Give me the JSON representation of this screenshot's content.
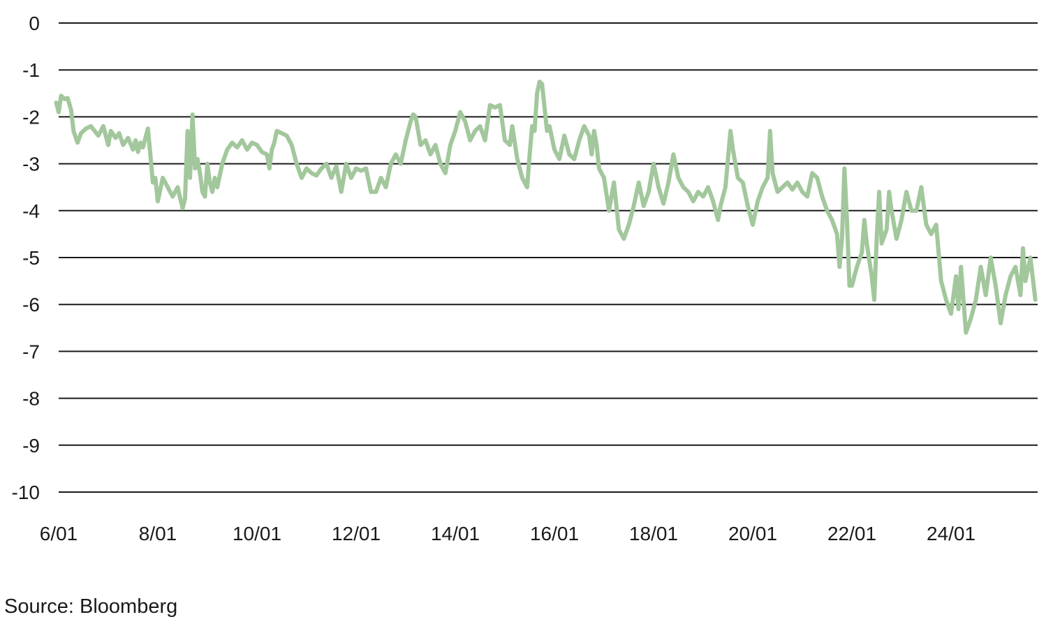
{
  "source": "Source: Bloomberg",
  "colors": {
    "line": "#a2c79c",
    "grid": "#1a1a1a",
    "text": "#1a1a1a"
  },
  "chart_data": {
    "type": "line",
    "ylim": [
      -10,
      0
    ],
    "yticks": [
      0,
      -1,
      -2,
      -3,
      -4,
      -5,
      -6,
      -7,
      -8,
      -9,
      -10
    ],
    "ytick_labels": [
      "0",
      "-1",
      "-2",
      "-3",
      "-4",
      "-5",
      "-6",
      "-7",
      "-8",
      "-9",
      "-10"
    ],
    "xlim_days": [
      0,
      19.7
    ],
    "xticks": [
      {
        "label": "6/01",
        "day": 0
      },
      {
        "label": "8/01",
        "day": 2
      },
      {
        "label": "10/01",
        "day": 4
      },
      {
        "label": "12/01",
        "day": 6
      },
      {
        "label": "14/01",
        "day": 8
      },
      {
        "label": "16/01",
        "day": 10
      },
      {
        "label": "18/01",
        "day": 12
      },
      {
        "label": "20/01",
        "day": 14
      },
      {
        "label": "22/01",
        "day": 16
      },
      {
        "label": "24/01",
        "day": 18
      }
    ],
    "grid": true,
    "series": [
      {
        "points": [
          [
            -0.05,
            -1.7
          ],
          [
            0.0,
            -1.9
          ],
          [
            0.05,
            -1.55
          ],
          [
            0.12,
            -1.62
          ],
          [
            0.18,
            -1.6
          ],
          [
            0.25,
            -1.85
          ],
          [
            0.3,
            -2.3
          ],
          [
            0.38,
            -2.55
          ],
          [
            0.45,
            -2.35
          ],
          [
            0.55,
            -2.25
          ],
          [
            0.65,
            -2.2
          ],
          [
            0.8,
            -2.4
          ],
          [
            0.9,
            -2.2
          ],
          [
            1.0,
            -2.6
          ],
          [
            1.05,
            -2.3
          ],
          [
            1.15,
            -2.45
          ],
          [
            1.22,
            -2.35
          ],
          [
            1.3,
            -2.6
          ],
          [
            1.4,
            -2.45
          ],
          [
            1.5,
            -2.7
          ],
          [
            1.55,
            -2.5
          ],
          [
            1.6,
            -2.75
          ],
          [
            1.65,
            -2.55
          ],
          [
            1.7,
            -2.65
          ],
          [
            1.8,
            -2.25
          ],
          [
            1.85,
            -2.8
          ],
          [
            1.9,
            -3.4
          ],
          [
            1.95,
            -3.3
          ],
          [
            2.0,
            -3.8
          ],
          [
            2.1,
            -3.3
          ],
          [
            2.2,
            -3.5
          ],
          [
            2.3,
            -3.7
          ],
          [
            2.4,
            -3.5
          ],
          [
            2.5,
            -3.95
          ],
          [
            2.55,
            -3.75
          ],
          [
            2.6,
            -2.3
          ],
          [
            2.65,
            -3.3
          ],
          [
            2.7,
            -1.95
          ],
          [
            2.75,
            -3.1
          ],
          [
            2.8,
            -2.9
          ],
          [
            2.85,
            -3.2
          ],
          [
            2.9,
            -3.6
          ],
          [
            2.95,
            -3.7
          ],
          [
            3.0,
            -3.0
          ],
          [
            3.05,
            -3.4
          ],
          [
            3.1,
            -3.6
          ],
          [
            3.15,
            -3.3
          ],
          [
            3.2,
            -3.5
          ],
          [
            3.3,
            -3.0
          ],
          [
            3.4,
            -2.7
          ],
          [
            3.5,
            -2.55
          ],
          [
            3.6,
            -2.65
          ],
          [
            3.7,
            -2.5
          ],
          [
            3.8,
            -2.7
          ],
          [
            3.9,
            -2.55
          ],
          [
            4.0,
            -2.6
          ],
          [
            4.1,
            -2.75
          ],
          [
            4.2,
            -2.8
          ],
          [
            4.25,
            -3.1
          ],
          [
            4.3,
            -2.7
          ],
          [
            4.35,
            -2.55
          ],
          [
            4.4,
            -2.3
          ],
          [
            4.5,
            -2.35
          ],
          [
            4.6,
            -2.4
          ],
          [
            4.7,
            -2.6
          ],
          [
            4.8,
            -3.0
          ],
          [
            4.9,
            -3.3
          ],
          [
            5.0,
            -3.1
          ],
          [
            5.1,
            -3.2
          ],
          [
            5.2,
            -3.25
          ],
          [
            5.3,
            -3.1
          ],
          [
            5.4,
            -3.0
          ],
          [
            5.5,
            -3.3
          ],
          [
            5.6,
            -3.05
          ],
          [
            5.7,
            -3.6
          ],
          [
            5.8,
            -3.0
          ],
          [
            5.9,
            -3.3
          ],
          [
            6.0,
            -3.1
          ],
          [
            6.1,
            -3.15
          ],
          [
            6.2,
            -3.1
          ],
          [
            6.3,
            -3.6
          ],
          [
            6.4,
            -3.6
          ],
          [
            6.5,
            -3.3
          ],
          [
            6.6,
            -3.5
          ],
          [
            6.7,
            -3.0
          ],
          [
            6.8,
            -2.8
          ],
          [
            6.9,
            -3.0
          ],
          [
            7.0,
            -2.5
          ],
          [
            7.1,
            -2.1
          ],
          [
            7.15,
            -1.95
          ],
          [
            7.2,
            -2.0
          ],
          [
            7.3,
            -2.6
          ],
          [
            7.4,
            -2.5
          ],
          [
            7.5,
            -2.8
          ],
          [
            7.6,
            -2.6
          ],
          [
            7.7,
            -3.0
          ],
          [
            7.8,
            -3.2
          ],
          [
            7.9,
            -2.6
          ],
          [
            8.0,
            -2.3
          ],
          [
            8.1,
            -1.9
          ],
          [
            8.2,
            -2.1
          ],
          [
            8.3,
            -2.5
          ],
          [
            8.4,
            -2.3
          ],
          [
            8.5,
            -2.2
          ],
          [
            8.6,
            -2.5
          ],
          [
            8.7,
            -1.75
          ],
          [
            8.8,
            -1.8
          ],
          [
            8.9,
            -1.75
          ],
          [
            9.0,
            -2.5
          ],
          [
            9.1,
            -2.6
          ],
          [
            9.15,
            -2.2
          ],
          [
            9.25,
            -2.9
          ],
          [
            9.35,
            -3.3
          ],
          [
            9.45,
            -3.5
          ],
          [
            9.5,
            -2.8
          ],
          [
            9.55,
            -2.2
          ],
          [
            9.6,
            -2.3
          ],
          [
            9.65,
            -1.5
          ],
          [
            9.7,
            -1.25
          ],
          [
            9.75,
            -1.3
          ],
          [
            9.8,
            -1.8
          ],
          [
            9.85,
            -2.3
          ],
          [
            9.9,
            -2.2
          ],
          [
            10.0,
            -2.7
          ],
          [
            10.1,
            -2.9
          ],
          [
            10.2,
            -2.4
          ],
          [
            10.3,
            -2.8
          ],
          [
            10.4,
            -2.9
          ],
          [
            10.5,
            -2.5
          ],
          [
            10.6,
            -2.2
          ],
          [
            10.7,
            -2.4
          ],
          [
            10.75,
            -2.8
          ],
          [
            10.8,
            -2.3
          ],
          [
            10.85,
            -2.6
          ],
          [
            10.9,
            -3.1
          ],
          [
            11.0,
            -3.3
          ],
          [
            11.1,
            -4.0
          ],
          [
            11.2,
            -3.4
          ],
          [
            11.25,
            -3.9
          ],
          [
            11.3,
            -4.4
          ],
          [
            11.4,
            -4.6
          ],
          [
            11.5,
            -4.3
          ],
          [
            11.6,
            -3.9
          ],
          [
            11.7,
            -3.4
          ],
          [
            11.8,
            -3.9
          ],
          [
            11.9,
            -3.6
          ],
          [
            12.0,
            -3.0
          ],
          [
            12.1,
            -3.5
          ],
          [
            12.2,
            -3.85
          ],
          [
            12.3,
            -3.4
          ],
          [
            12.4,
            -2.8
          ],
          [
            12.5,
            -3.3
          ],
          [
            12.6,
            -3.5
          ],
          [
            12.7,
            -3.6
          ],
          [
            12.8,
            -3.8
          ],
          [
            12.9,
            -3.6
          ],
          [
            13.0,
            -3.7
          ],
          [
            13.1,
            -3.5
          ],
          [
            13.2,
            -3.8
          ],
          [
            13.3,
            -4.2
          ],
          [
            13.35,
            -3.9
          ],
          [
            13.45,
            -3.5
          ],
          [
            13.55,
            -2.3
          ],
          [
            13.6,
            -2.7
          ],
          [
            13.7,
            -3.3
          ],
          [
            13.8,
            -3.4
          ],
          [
            13.9,
            -3.9
          ],
          [
            14.0,
            -4.3
          ],
          [
            14.1,
            -3.8
          ],
          [
            14.2,
            -3.5
          ],
          [
            14.3,
            -3.3
          ],
          [
            14.35,
            -2.3
          ],
          [
            14.4,
            -3.2
          ],
          [
            14.5,
            -3.6
          ],
          [
            14.6,
            -3.5
          ],
          [
            14.7,
            -3.4
          ],
          [
            14.8,
            -3.55
          ],
          [
            14.9,
            -3.4
          ],
          [
            15.0,
            -3.6
          ],
          [
            15.1,
            -3.7
          ],
          [
            15.2,
            -3.2
          ],
          [
            15.3,
            -3.3
          ],
          [
            15.4,
            -3.7
          ],
          [
            15.5,
            -4.0
          ],
          [
            15.6,
            -4.2
          ],
          [
            15.7,
            -4.5
          ],
          [
            15.75,
            -5.2
          ],
          [
            15.8,
            -4.6
          ],
          [
            15.85,
            -3.1
          ],
          [
            15.9,
            -4.2
          ],
          [
            15.95,
            -5.6
          ],
          [
            16.0,
            -5.6
          ],
          [
            16.1,
            -5.2
          ],
          [
            16.2,
            -4.9
          ],
          [
            16.25,
            -4.2
          ],
          [
            16.3,
            -4.7
          ],
          [
            16.4,
            -5.4
          ],
          [
            16.45,
            -5.9
          ],
          [
            16.5,
            -4.6
          ],
          [
            16.55,
            -3.6
          ],
          [
            16.6,
            -4.7
          ],
          [
            16.7,
            -4.4
          ],
          [
            16.75,
            -3.6
          ],
          [
            16.8,
            -4.0
          ],
          [
            16.9,
            -4.6
          ],
          [
            17.0,
            -4.2
          ],
          [
            17.1,
            -3.6
          ],
          [
            17.2,
            -4.0
          ],
          [
            17.3,
            -4.0
          ],
          [
            17.4,
            -3.5
          ],
          [
            17.5,
            -4.3
          ],
          [
            17.6,
            -4.5
          ],
          [
            17.7,
            -4.3
          ],
          [
            17.8,
            -5.5
          ],
          [
            17.9,
            -5.9
          ],
          [
            18.0,
            -6.2
          ],
          [
            18.1,
            -5.4
          ],
          [
            18.15,
            -6.1
          ],
          [
            18.2,
            -5.2
          ],
          [
            18.3,
            -6.6
          ],
          [
            18.4,
            -6.3
          ],
          [
            18.5,
            -5.9
          ],
          [
            18.6,
            -5.2
          ],
          [
            18.7,
            -5.8
          ],
          [
            18.8,
            -5.0
          ],
          [
            18.9,
            -5.6
          ],
          [
            19.0,
            -6.4
          ],
          [
            19.1,
            -5.8
          ],
          [
            19.2,
            -5.4
          ],
          [
            19.3,
            -5.2
          ],
          [
            19.4,
            -5.8
          ],
          [
            19.45,
            -4.8
          ],
          [
            19.5,
            -5.5
          ],
          [
            19.6,
            -5.0
          ],
          [
            19.7,
            -5.9
          ]
        ]
      }
    ]
  }
}
